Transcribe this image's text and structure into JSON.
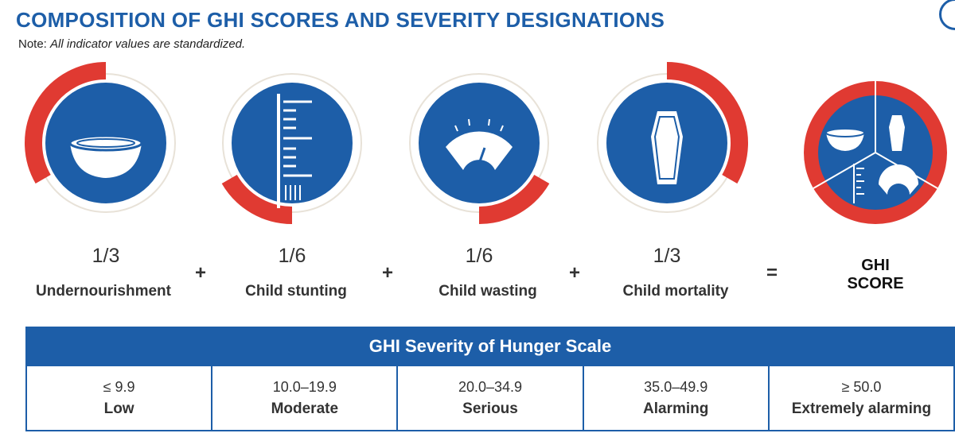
{
  "title": "COMPOSITION OF GHI SCORES AND SEVERITY DESIGNATIONS",
  "note": {
    "label": "Note:",
    "text": "All indicator values are standardized."
  },
  "colors": {
    "blue": "#1d5ea8",
    "red": "#e03a32",
    "ring_bg": "#ffffff",
    "ring_line": "#e8e2d8"
  },
  "indicators": [
    {
      "fraction": "1/3",
      "label": "Undernourishment",
      "icon": "bowl-icon",
      "weight": 0.3333
    },
    {
      "fraction": "1/6",
      "label": "Child stunting",
      "icon": "measuring-ruler-icon",
      "weight": 0.1667
    },
    {
      "fraction": "1/6",
      "label": "Child wasting",
      "icon": "weighing-scale-icon",
      "weight": 0.1667
    },
    {
      "fraction": "1/3",
      "label": "Child mortality",
      "icon": "coffin-icon",
      "weight": 0.3333
    }
  ],
  "operators": [
    "+",
    "+",
    "+",
    "="
  ],
  "result": {
    "line1": "GHI",
    "line2": "SCORE"
  },
  "scale": {
    "title": "GHI Severity of Hunger Scale",
    "levels": [
      {
        "range": "≤ 9.9",
        "label": "Low"
      },
      {
        "range": "10.0–19.9",
        "label": "Moderate"
      },
      {
        "range": "20.0–34.9",
        "label": "Serious"
      },
      {
        "range": "35.0–49.9",
        "label": "Alarming"
      },
      {
        "range": "≥ 50.0",
        "label": "Extremely alarming"
      }
    ]
  }
}
